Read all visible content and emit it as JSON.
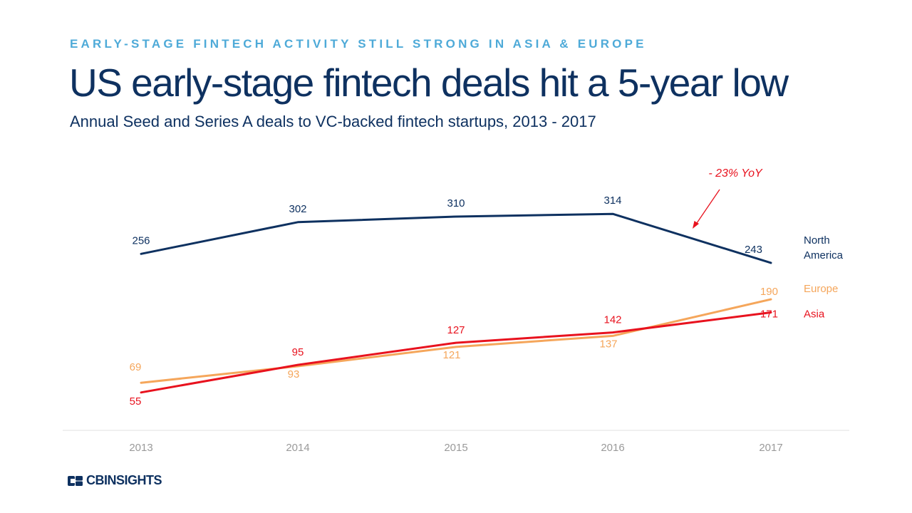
{
  "header": {
    "kicker": "EARLY-STAGE FINTECH ACTIVITY STILL STRONG IN ASIA & EUROPE",
    "title": "US early-stage fintech deals hit a 5-year low",
    "subtitle": "Annual Seed and Series A deals to VC-backed fintech startups, 2013 - 2017"
  },
  "chart_data": {
    "type": "line",
    "x": [
      "2013",
      "2014",
      "2015",
      "2016",
      "2017"
    ],
    "ylim": [
      0,
      340
    ],
    "series": [
      {
        "name": "North America",
        "label_lines": [
          "North",
          "America"
        ],
        "color": "#0e3160",
        "values": [
          256,
          302,
          310,
          314,
          243
        ]
      },
      {
        "name": "Europe",
        "label_lines": [
          "Europe"
        ],
        "color": "#f5a65b",
        "values": [
          69,
          93,
          121,
          137,
          190
        ]
      },
      {
        "name": "Asia",
        "label_lines": [
          "Asia"
        ],
        "color": "#e8121e",
        "values": [
          55,
          95,
          127,
          142,
          171
        ]
      }
    ],
    "annotation": {
      "text": "- 23% YoY",
      "color": "#e8121e"
    },
    "axis_color": "#9a9a9a"
  },
  "brand": {
    "name": "CBINSIGHTS"
  }
}
